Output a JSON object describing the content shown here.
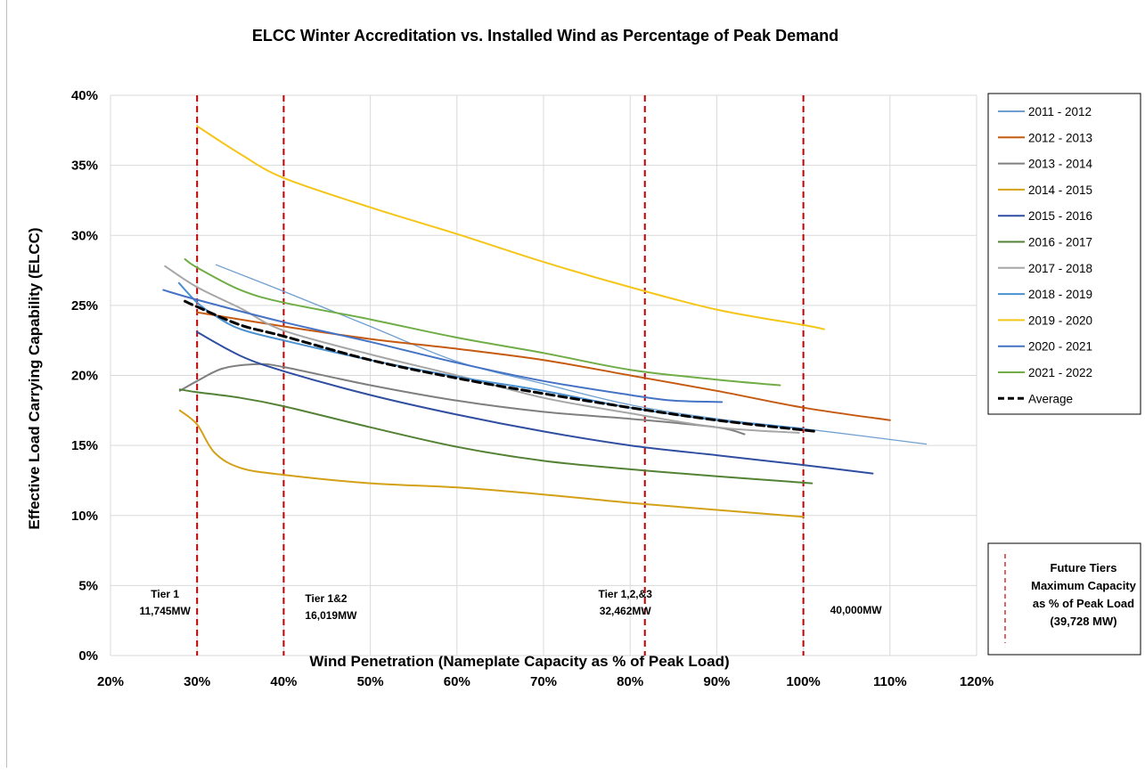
{
  "chart_data": {
    "type": "line",
    "title": "ELCC Winter Accreditation vs. Installed Wind as Percentage of Peak Demand",
    "xlabel": "Wind Penetration (Nameplate Capacity as % of Peak Load)",
    "ylabel": "Effective Load Carrying Capability (ELCC)",
    "xlim": [
      20,
      120
    ],
    "ylim": [
      0,
      40
    ],
    "x_ticks": [
      "20%",
      "30%",
      "40%",
      "50%",
      "60%",
      "70%",
      "80%",
      "90%",
      "100%",
      "110%",
      "120%"
    ],
    "y_ticks": [
      "0%",
      "5%",
      "10%",
      "15%",
      "20%",
      "25%",
      "30%",
      "35%",
      "40%"
    ],
    "grid": true,
    "legend_position": "right",
    "series": [
      {
        "name": "2011 - 2012",
        "color": "#6f9fcf",
        "width": 1.3,
        "points": [
          [
            32.2,
            27.9
          ],
          [
            40,
            26.0
          ],
          [
            50,
            23.5
          ],
          [
            60,
            21.0
          ],
          [
            70,
            19.4
          ],
          [
            80,
            17.9
          ],
          [
            90,
            16.9
          ],
          [
            100,
            16.2
          ],
          [
            114.2,
            15.1
          ]
        ]
      },
      {
        "name": "2012 - 2013",
        "color": "#c55a11",
        "width": 2,
        "points": [
          [
            30,
            24.5
          ],
          [
            40,
            23.5
          ],
          [
            50,
            22.6
          ],
          [
            60,
            21.9
          ],
          [
            70,
            21.1
          ],
          [
            80,
            20.0
          ],
          [
            90,
            18.9
          ],
          [
            100,
            17.7
          ],
          [
            110,
            16.8
          ]
        ]
      },
      {
        "name": "2013 - 2014",
        "color": "#7f7f7f",
        "width": 2,
        "points": [
          [
            28,
            18.9
          ],
          [
            30,
            19.6
          ],
          [
            33,
            20.5
          ],
          [
            37,
            20.8
          ],
          [
            40,
            20.6
          ],
          [
            50,
            19.3
          ],
          [
            60,
            18.2
          ],
          [
            70,
            17.4
          ],
          [
            80,
            16.9
          ],
          [
            90,
            16.3
          ],
          [
            93.2,
            15.8
          ]
        ]
      },
      {
        "name": "2014 - 2015",
        "color": "#d4a017",
        "width": 2,
        "points": [
          [
            28,
            17.5
          ],
          [
            30,
            16.5
          ],
          [
            32,
            14.5
          ],
          [
            35,
            13.4
          ],
          [
            40,
            12.9
          ],
          [
            50,
            12.3
          ],
          [
            60,
            12.0
          ],
          [
            70,
            11.5
          ],
          [
            80,
            10.9
          ],
          [
            90,
            10.4
          ],
          [
            100,
            9.9
          ]
        ]
      },
      {
        "name": "2015 - 2016",
        "color": "#2f4ea1",
        "width": 2,
        "points": [
          [
            30,
            23.1
          ],
          [
            35,
            21.4
          ],
          [
            40,
            20.3
          ],
          [
            50,
            18.6
          ],
          [
            60,
            17.2
          ],
          [
            70,
            16.0
          ],
          [
            80,
            15.0
          ],
          [
            90,
            14.3
          ],
          [
            100,
            13.6
          ],
          [
            108,
            13.0
          ]
        ]
      },
      {
        "name": "2016 - 2017",
        "color": "#548235",
        "width": 2,
        "points": [
          [
            28,
            19.0
          ],
          [
            30,
            18.8
          ],
          [
            35,
            18.4
          ],
          [
            40,
            17.8
          ],
          [
            50,
            16.3
          ],
          [
            60,
            14.9
          ],
          [
            70,
            13.9
          ],
          [
            80,
            13.3
          ],
          [
            90,
            12.8
          ],
          [
            101,
            12.3
          ]
        ]
      },
      {
        "name": "2017 - 2018",
        "color": "#a6a6a6",
        "width": 2,
        "points": [
          [
            26.3,
            27.8
          ],
          [
            30,
            26.3
          ],
          [
            35,
            24.8
          ],
          [
            40,
            23.2
          ],
          [
            50,
            21.5
          ],
          [
            60,
            20.0
          ],
          [
            70,
            18.4
          ],
          [
            80,
            17.3
          ],
          [
            90,
            16.3
          ],
          [
            99.5,
            15.9
          ]
        ]
      },
      {
        "name": "2018 - 2019",
        "color": "#4a90d0",
        "width": 2,
        "points": [
          [
            27.9,
            26.6
          ],
          [
            30,
            25.2
          ],
          [
            32,
            24.3
          ],
          [
            35,
            23.3
          ],
          [
            40,
            22.5
          ],
          [
            50,
            21.1
          ],
          [
            60,
            19.9
          ],
          [
            70,
            18.9
          ],
          [
            80,
            17.7
          ],
          [
            90,
            16.8
          ],
          [
            100,
            16.2
          ]
        ]
      },
      {
        "name": "2019 - 2020",
        "color": "#f5c518",
        "width": 2,
        "points": [
          [
            30,
            37.8
          ],
          [
            35,
            35.8
          ],
          [
            40,
            34.1
          ],
          [
            50,
            32.0
          ],
          [
            60,
            30.1
          ],
          [
            70,
            28.1
          ],
          [
            80,
            26.3
          ],
          [
            90,
            24.7
          ],
          [
            100,
            23.6
          ],
          [
            102.4,
            23.3
          ]
        ]
      },
      {
        "name": "2020 - 2021",
        "color": "#4472c4",
        "width": 2,
        "points": [
          [
            26.1,
            26.1
          ],
          [
            30,
            25.4
          ],
          [
            40,
            23.8
          ],
          [
            50,
            22.4
          ],
          [
            60,
            20.9
          ],
          [
            70,
            19.6
          ],
          [
            80,
            18.6
          ],
          [
            85,
            18.2
          ],
          [
            90.6,
            18.1
          ]
        ]
      },
      {
        "name": "2021 - 2022",
        "color": "#70ad47",
        "width": 2,
        "points": [
          [
            28.6,
            28.3
          ],
          [
            30,
            27.7
          ],
          [
            35,
            26.1
          ],
          [
            40,
            25.2
          ],
          [
            50,
            24.0
          ],
          [
            60,
            22.7
          ],
          [
            70,
            21.6
          ],
          [
            80,
            20.4
          ],
          [
            90,
            19.7
          ],
          [
            97.3,
            19.3
          ]
        ]
      },
      {
        "name": "Average",
        "color": "#000000",
        "width": 3,
        "dash": "9,5",
        "points": [
          [
            28.6,
            25.3
          ],
          [
            30,
            24.9
          ],
          [
            35,
            23.6
          ],
          [
            40,
            22.8
          ],
          [
            50,
            21.1
          ],
          [
            60,
            19.8
          ],
          [
            70,
            18.7
          ],
          [
            80,
            17.7
          ],
          [
            90,
            16.8
          ],
          [
            101.5,
            16.0
          ]
        ]
      }
    ],
    "tiers": [
      {
        "x": 30,
        "lines": [
          "Tier 1",
          "11,745MW"
        ]
      },
      {
        "x": 40,
        "lines": [
          "Tier 1&2",
          "16,019MW"
        ]
      },
      {
        "x": 81.7,
        "lines": [
          "Tier 1,2,&3",
          "32,462MW"
        ]
      },
      {
        "x": 100,
        "lines": [
          "40,000MW"
        ]
      }
    ],
    "tier_line_color": "#c00000",
    "tier_legend": {
      "lines": [
        "Future Tiers",
        "Maximum Capacity",
        "as % of Peak Load",
        "(39,728 MW)"
      ]
    }
  }
}
